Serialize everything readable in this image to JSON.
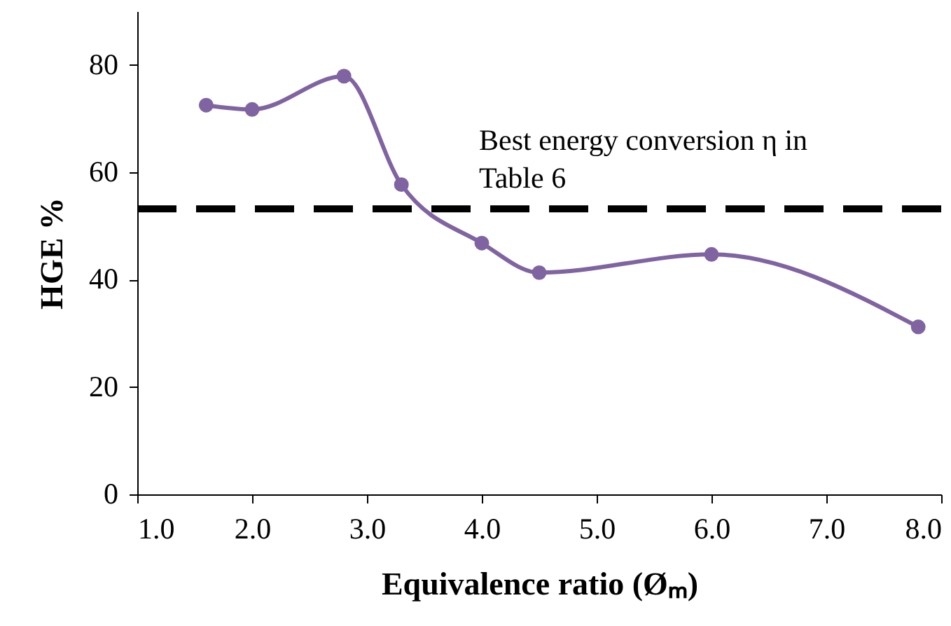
{
  "chart_data": {
    "type": "line",
    "xlabel": "Equivalence ratio (Øₘ)",
    "ylabel": "HGE %",
    "x": [
      1.6,
      2.0,
      2.8,
      3.3,
      4.0,
      4.5,
      6.0,
      7.8
    ],
    "series": [
      {
        "color": "#8064a2",
        "values": [
          72.5,
          71.7,
          77.9,
          57.7,
          46.8,
          41.3,
          44.7,
          31.2
        ]
      }
    ],
    "xlim": [
      1,
      8
    ],
    "xticks": [
      {
        "value": 1,
        "label": "1.0"
      },
      {
        "value": 2,
        "label": "2.0"
      },
      {
        "value": 3,
        "label": "3.0"
      },
      {
        "value": 4,
        "label": "4.0"
      },
      {
        "value": 5,
        "label": "5.0"
      },
      {
        "value": 6,
        "label": "6.0"
      },
      {
        "value": 7,
        "label": "7.0"
      },
      {
        "value": 8,
        "label": "8.0"
      }
    ],
    "ylim": [
      0,
      90
    ],
    "yticks": [
      0,
      20,
      40,
      60,
      80
    ],
    "ref_lines": [
      {
        "axis": "y",
        "value": 53.2,
        "label": "Best energy conversion η in\nTable 6",
        "color": "#000000",
        "line_style": "dashed"
      }
    ],
    "grid": false,
    "marker": "circle",
    "line_style": "solid"
  }
}
